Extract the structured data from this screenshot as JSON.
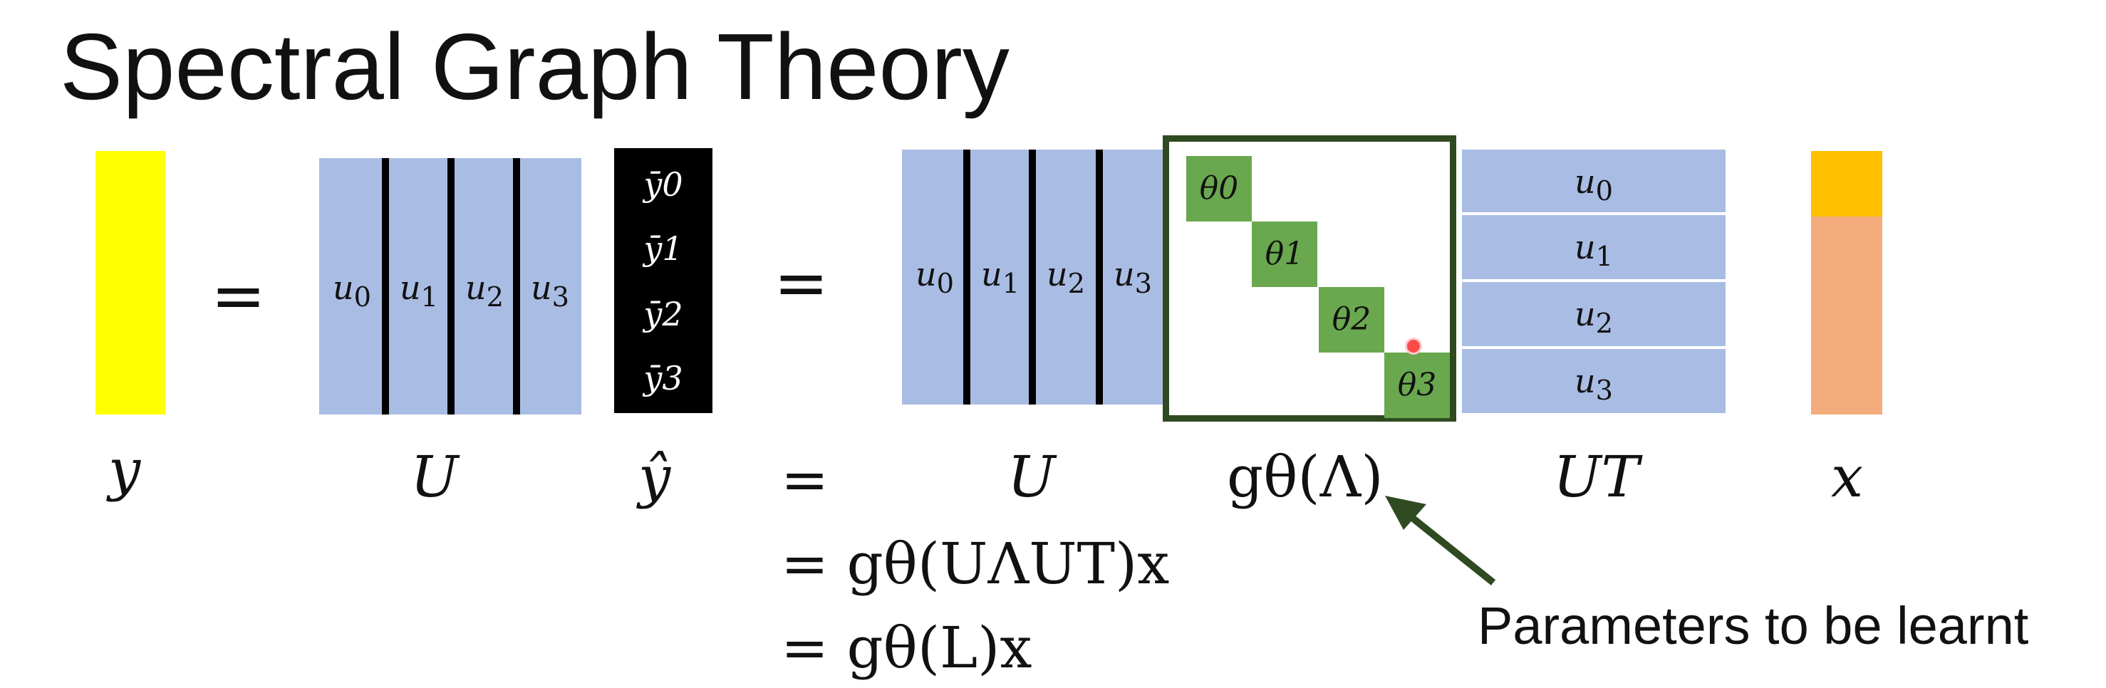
{
  "title": "Spectral Graph Theory",
  "equals": "=",
  "u_labels": [
    "u0",
    "u1",
    "u2",
    "u3"
  ],
  "yhat_entries": [
    "ȳ0",
    "ȳ1",
    "ȳ2",
    "ȳ3"
  ],
  "thetas": [
    "θ0",
    "θ1",
    "θ2",
    "θ3"
  ],
  "labels": {
    "y": "y",
    "U": "U",
    "y_hat": "ŷ",
    "g_theta_lambda": "gθ(Λ)",
    "U_T": "UT",
    "x": "x"
  },
  "equations": {
    "line1": "= gθ(UΛUT)x",
    "line2": "= gθ(L)x"
  },
  "annotation": "Parameters to be learnt",
  "colors": {
    "y_vector": "#ffff00",
    "u_matrix": "#a9bde4",
    "theta_cell": "#6aa84f",
    "g_box_border": "#2f4a20",
    "x_top": "#ffc000",
    "x_bottom": "#f4ac7c",
    "arrow": "#2f4a20"
  }
}
